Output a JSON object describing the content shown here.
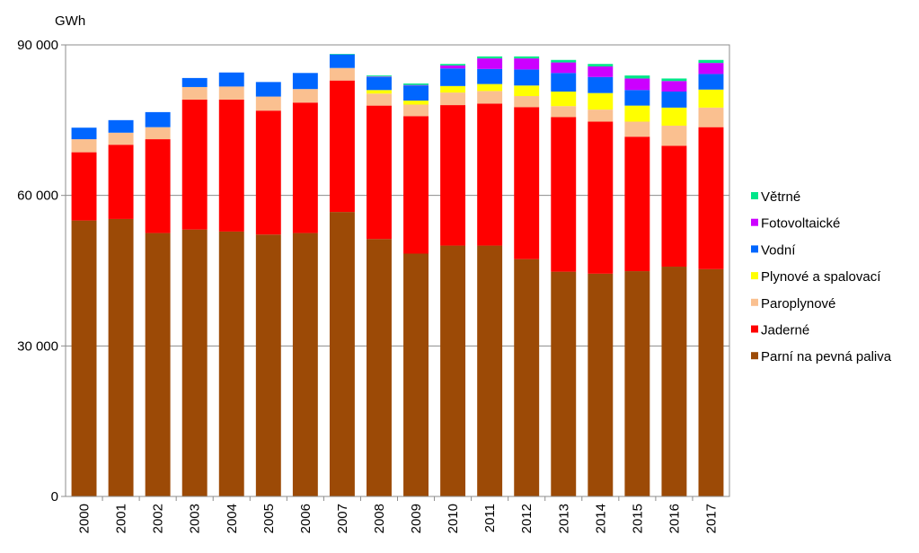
{
  "chart_data": {
    "type": "bar",
    "stacked": true,
    "title": "",
    "xlabel": "",
    "ylabel": "GWh",
    "ylim": [
      0,
      90000
    ],
    "yticks": [
      0,
      30000,
      60000,
      90000
    ],
    "ytick_labels": [
      "0",
      "30 000",
      "60 000",
      "90 000"
    ],
    "grid": "horizontal",
    "legend_position": "right",
    "categories": [
      "2000",
      "2001",
      "2002",
      "2003",
      "2004",
      "2005",
      "2006",
      "2007",
      "2008",
      "2009",
      "2010",
      "2011",
      "2012",
      "2013",
      "2014",
      "2015",
      "2016",
      "2017"
    ],
    "series": [
      {
        "name": "Parní na pevná paliva",
        "color": "#9c4a06",
        "values": [
          55000,
          55300,
          52500,
          53200,
          52800,
          52200,
          52500,
          56700,
          51300,
          48400,
          50000,
          50000,
          47300,
          44800,
          44400,
          44900,
          45800,
          45300
        ]
      },
      {
        "name": "Jaderné",
        "color": "#ff0000",
        "values": [
          13600,
          14800,
          18700,
          25900,
          26300,
          24700,
          26000,
          26200,
          26600,
          27400,
          28000,
          28300,
          30300,
          30800,
          30300,
          26800,
          24100,
          28300
        ]
      },
      {
        "name": "Paroplynové",
        "color": "#fac090",
        "values": [
          2600,
          2400,
          2400,
          2500,
          2600,
          2800,
          2700,
          2500,
          2400,
          2300,
          2500,
          2500,
          2200,
          2200,
          2400,
          3000,
          4000,
          3900
        ]
      },
      {
        "name": "Plynové a spalovací",
        "color": "#ffff00",
        "values": [
          0,
          0,
          0,
          0,
          0,
          0,
          0,
          0,
          700,
          800,
          1300,
          1400,
          2100,
          2900,
          3300,
          3200,
          3600,
          3600
        ]
      },
      {
        "name": "Vodní",
        "color": "#0066ff",
        "values": [
          2300,
          2500,
          3000,
          1800,
          2800,
          2900,
          3200,
          2700,
          2600,
          3000,
          3500,
          3000,
          3200,
          3700,
          3200,
          3100,
          3200,
          3100
        ]
      },
      {
        "name": "Fotovoltaické",
        "color": "#cc00ff",
        "values": [
          0,
          0,
          0,
          0,
          0,
          0,
          0,
          0,
          100,
          100,
          600,
          2100,
          2200,
          2100,
          2100,
          2300,
          2100,
          2200
        ]
      },
      {
        "name": "Větrné",
        "color": "#00e68a",
        "values": [
          0,
          0,
          0,
          0,
          0,
          0,
          0,
          100,
          200,
          300,
          300,
          400,
          400,
          500,
          500,
          600,
          500,
          600
        ]
      }
    ]
  }
}
